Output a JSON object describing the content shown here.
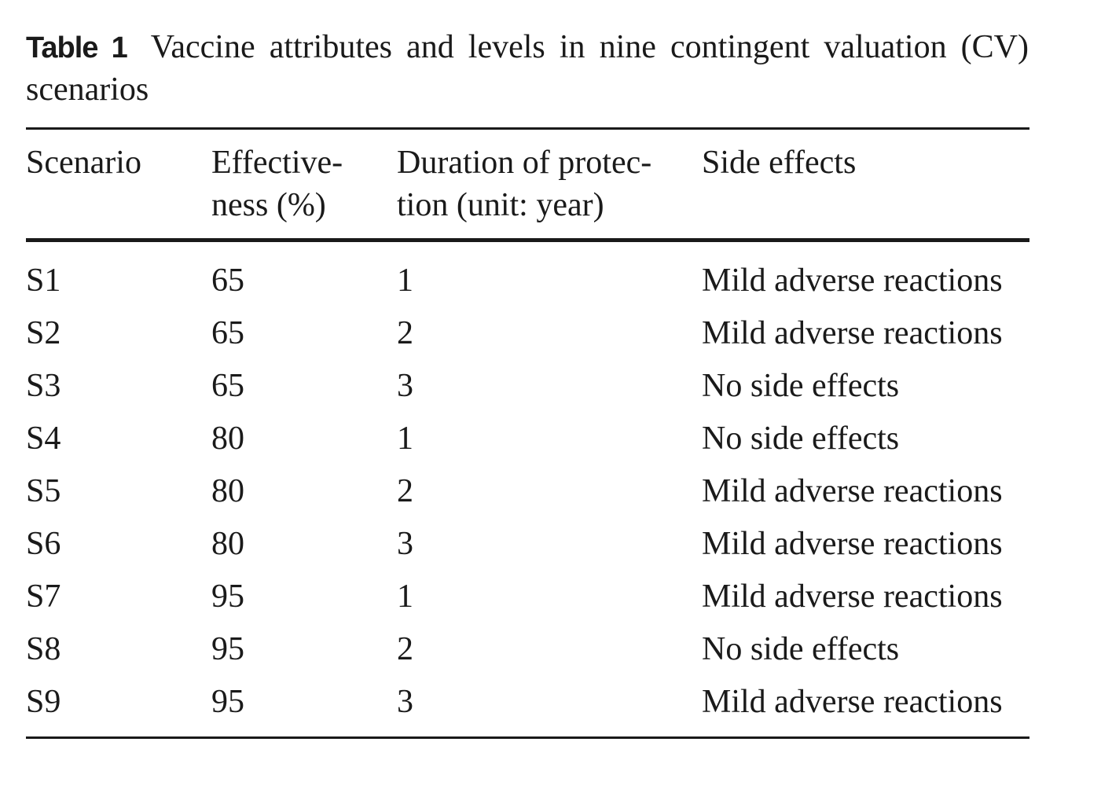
{
  "caption": {
    "label": "Table 1",
    "text": "Vaccine attributes and levels in nine contingent valuation (CV) scenarios"
  },
  "headers": {
    "scenario": [
      "Scenario"
    ],
    "effectiveness": [
      "Effective-",
      "ness (%)"
    ],
    "duration": [
      "Duration of protec-",
      "tion (unit: year)"
    ],
    "side_effects": [
      "Side effects"
    ]
  },
  "rows": [
    {
      "scenario": "S1",
      "effectiveness": "65",
      "duration": "1",
      "side_effects": "Mild adverse reactions"
    },
    {
      "scenario": "S2",
      "effectiveness": "65",
      "duration": "2",
      "side_effects": "Mild adverse reactions"
    },
    {
      "scenario": "S3",
      "effectiveness": "65",
      "duration": "3",
      "side_effects": "No side effects"
    },
    {
      "scenario": "S4",
      "effectiveness": "80",
      "duration": "1",
      "side_effects": "No side effects"
    },
    {
      "scenario": "S5",
      "effectiveness": "80",
      "duration": "2",
      "side_effects": "Mild adverse reactions"
    },
    {
      "scenario": "S6",
      "effectiveness": "80",
      "duration": "3",
      "side_effects": "Mild adverse reactions"
    },
    {
      "scenario": "S7",
      "effectiveness": "95",
      "duration": "1",
      "side_effects": "Mild adverse reactions"
    },
    {
      "scenario": "S8",
      "effectiveness": "95",
      "duration": "2",
      "side_effects": "No side effects"
    },
    {
      "scenario": "S9",
      "effectiveness": "95",
      "duration": "3",
      "side_effects": "Mild adverse reactions"
    }
  ]
}
